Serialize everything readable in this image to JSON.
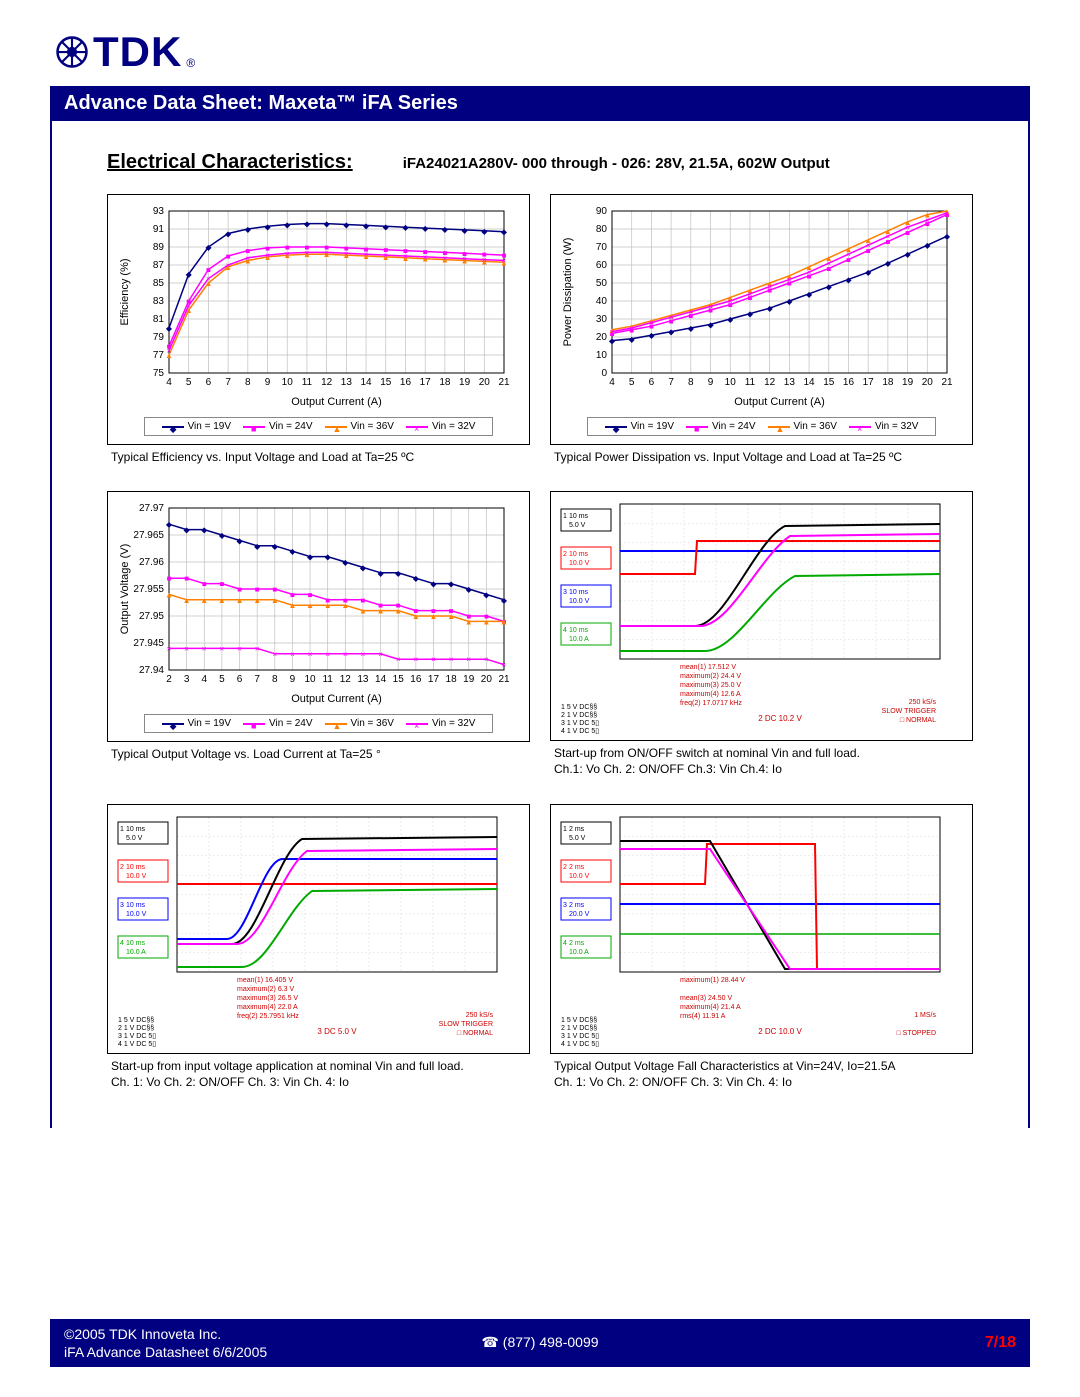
{
  "logo_text": "TDK",
  "title_bar": "Advance Data Sheet: Maxeta™ iFA Series",
  "section_title": "Electrical Characteristics:",
  "subtitle": "iFA24021A280V- 000 through - 026: 28V, 21.5A, 602W Output",
  "colors": {
    "navy": "#000080",
    "magenta": "#ff00ff",
    "orange": "#ff8000",
    "grid": "#c0c0c0",
    "red": "#ff0000",
    "blue": "#0000ff",
    "green": "#00aa00",
    "black": "#000000"
  },
  "legend_items": [
    {
      "label": "Vin = 19V",
      "color": "#000080",
      "marker": "◆"
    },
    {
      "label": "Vin = 24V",
      "color": "#ff00ff",
      "marker": "■"
    },
    {
      "label": "Vin = 36V",
      "color": "#ff8000",
      "marker": "▲"
    },
    {
      "label": "Vin = 32V",
      "color": "#ff00ff",
      "marker": "×"
    }
  ],
  "chart1": {
    "xlabel": "Output Current (A)",
    "ylabel": "Efficiency (%)",
    "xmin": 4,
    "xmax": 21,
    "xstep": 1,
    "ymin": 75,
    "ymax": 93,
    "ystep": 2,
    "caption": "Typical Efficiency vs. Input Voltage and Load at Ta=25 ºC",
    "series": [
      {
        "color": "#000080",
        "marker": "◆",
        "y": [
          80,
          86,
          89,
          90.5,
          91,
          91.3,
          91.5,
          91.6,
          91.6,
          91.5,
          91.4,
          91.3,
          91.2,
          91.1,
          91,
          90.9,
          90.8,
          90.7
        ]
      },
      {
        "color": "#ff00ff",
        "marker": "■",
        "y": [
          78,
          83,
          86.5,
          88,
          88.6,
          88.9,
          89,
          89,
          89,
          88.9,
          88.8,
          88.7,
          88.6,
          88.5,
          88.4,
          88.3,
          88.2,
          88.1
        ]
      },
      {
        "color": "#ff8000",
        "marker": "▲",
        "y": [
          77,
          82,
          85,
          86.8,
          87.5,
          87.9,
          88.1,
          88.2,
          88.2,
          88.1,
          88,
          87.9,
          87.8,
          87.7,
          87.6,
          87.5,
          87.4,
          87.3
        ]
      },
      {
        "color": "#ff00ff",
        "marker": "×",
        "y": [
          77.5,
          82.5,
          85.5,
          87,
          87.8,
          88.1,
          88.3,
          88.4,
          88.4,
          88.3,
          88.2,
          88.1,
          88,
          87.9,
          87.8,
          87.7,
          87.6,
          87.5
        ]
      }
    ]
  },
  "chart2": {
    "xlabel": "Output Current (A)",
    "ylabel": "Power Dissipation (W)",
    "xmin": 4,
    "xmax": 21,
    "xstep": 1,
    "ymin": 0,
    "ymax": 90,
    "ystep": 10,
    "caption": "Typical Power Dissipation vs. Input Voltage and Load at Ta=25 ºC",
    "series": [
      {
        "color": "#000080",
        "marker": "◆",
        "y": [
          18,
          19,
          21,
          23,
          25,
          27,
          30,
          33,
          36,
          40,
          44,
          48,
          52,
          56,
          61,
          66,
          71,
          76
        ]
      },
      {
        "color": "#ff00ff",
        "marker": "■",
        "y": [
          22,
          24,
          26,
          29,
          32,
          35,
          38,
          42,
          46,
          50,
          54,
          58,
          63,
          68,
          73,
          78,
          83,
          88
        ]
      },
      {
        "color": "#ff8000",
        "marker": "▲",
        "y": [
          24,
          26,
          29,
          32,
          35,
          38,
          42,
          46,
          50,
          54,
          59,
          64,
          69,
          74,
          79,
          84,
          88,
          90
        ]
      },
      {
        "color": "#ff00ff",
        "marker": "×",
        "y": [
          23,
          25,
          28,
          31,
          34,
          37,
          40,
          44,
          48,
          52,
          56,
          61,
          66,
          71,
          76,
          81,
          85,
          89
        ]
      }
    ]
  },
  "chart3": {
    "xlabel": "Output Current (A)",
    "ylabel": "Output Voltage (V)",
    "xmin": 2,
    "xmax": 21,
    "xstep": 1,
    "ymin": 27.94,
    "ymax": 27.97,
    "ystep": 0.005,
    "yticks": [
      "27.94",
      "27.945",
      "27.95",
      "27.955",
      "27.96",
      "27.965",
      "27.97"
    ],
    "caption": "Typical Output Voltage vs. Load Current at Ta=25 °",
    "series": [
      {
        "color": "#000080",
        "marker": "◆",
        "y": [
          27.967,
          27.966,
          27.966,
          27.965,
          27.964,
          27.963,
          27.963,
          27.962,
          27.961,
          27.961,
          27.96,
          27.959,
          27.958,
          27.958,
          27.957,
          27.956,
          27.956,
          27.955,
          27.954,
          27.953
        ]
      },
      {
        "color": "#ff00ff",
        "marker": "■",
        "y": [
          27.957,
          27.957,
          27.956,
          27.956,
          27.955,
          27.955,
          27.955,
          27.954,
          27.954,
          27.953,
          27.953,
          27.953,
          27.952,
          27.952,
          27.951,
          27.951,
          27.951,
          27.95,
          27.95,
          27.949
        ]
      },
      {
        "color": "#ff8000",
        "marker": "▲",
        "y": [
          27.954,
          27.953,
          27.953,
          27.953,
          27.953,
          27.953,
          27.953,
          27.952,
          27.952,
          27.952,
          27.952,
          27.951,
          27.951,
          27.951,
          27.95,
          27.95,
          27.95,
          27.949,
          27.949,
          27.949
        ]
      },
      {
        "color": "#ff00ff",
        "marker": "×",
        "y": [
          27.944,
          27.944,
          27.944,
          27.944,
          27.944,
          27.944,
          27.943,
          27.943,
          27.943,
          27.943,
          27.943,
          27.943,
          27.943,
          27.942,
          27.942,
          27.942,
          27.942,
          27.942,
          27.942,
          27.941
        ]
      }
    ]
  },
  "scope_labels": {
    "ch1": "10 ms\n5.0 V",
    "ch2": "10 ms\n10.0 V",
    "ch3": "10 ms\n10.0 V",
    "ch4": "10 ms\n10.0 A"
  },
  "scope4_caption": "Start-up from ON/OFF switch at nominal Vin and full load.\nCh.1: Vo     Ch. 2: ON/OFF      Ch.3: Vin       Ch.4: Io",
  "scope5_caption": "Start-up from input voltage application at nominal Vin and full load.\nCh. 1: Vo     Ch. 2: ON/OFF     Ch. 3:  Vin    Ch. 4: Io",
  "scope6_caption": "Typical Output Voltage Fall Characteristics at Vin=24V, Io=21.5A\nCh. 1: Vo     Ch. 2: ON/OFF     Ch. 3:  Vin    Ch. 4: Io",
  "scope4_meas": "mean(1)    17.512 V\nmaximum(2)  24.4 V\nmaximum(3)  25.0 V\nmaximum(4)  12.6 A\nfreq(2)  17.0717 kHz",
  "scope4_right": "250 kS/s\nSLOW TRIGGER\n□  NORMAL",
  "scope4_center": "2  DC 10.2 V",
  "scope5_meas": "mean(1)    16.405 V\nmaximum(2)   6.3 V\nmaximum(3)  26.5 V\nmaximum(4)  22.0 A\nfreq(2)  25.7951 kHz",
  "scope5_right": "250 kS/s\nSLOW TRIGGER\n□  NORMAL",
  "scope5_center": "3  DC 5.0 V",
  "scope6_ch": "2 ms\n5.0 V|2 ms\n10.0 V|2 ms\n20.0 V|2 ms\n10.0 A",
  "scope6_meas": "maximum(1)   28.44 V\n\nmean(3)    24.50 V\nmaximum(4)  21.4 A\nrms(4)    11.91 A",
  "scope6_right": "1 MS/s\n\n□  STOPPED",
  "scope6_center": "2  DC 10.0 V",
  "footer": {
    "copyright": "©2005 TDK Innoveta Inc.",
    "datasheet": "iFA Advance Datasheet   6/6/2005",
    "phone": "☎ (877) 498-0099",
    "page": "7/18"
  }
}
